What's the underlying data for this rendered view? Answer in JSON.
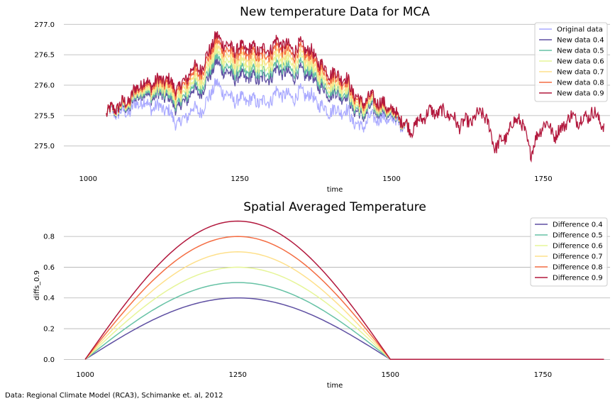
{
  "caption": "Data: Regional Climate Model (RCA3), Schimanke et. al, 2012",
  "chart_data": [
    {
      "type": "line",
      "title": "New temperature Data for MCA",
      "xlabel": "time",
      "ylabel": "",
      "xlim": [
        960,
        1860
      ],
      "ylim": [
        274.6,
        277.05
      ],
      "xticks": [
        1000,
        1250,
        1500,
        1750
      ],
      "yticks": [
        275.0,
        275.5,
        276.0,
        276.5,
        277.0
      ],
      "ytick_labels": [
        "275.0",
        "275.5",
        "276.0",
        "276.5",
        "277.0"
      ],
      "grid": "horizontal",
      "legend_position": "top-right",
      "mca_range": [
        1030,
        1530
      ],
      "baseline_x": [
        1030,
        1050,
        1070,
        1090,
        1110,
        1130,
        1150,
        1170,
        1190,
        1200,
        1210,
        1230,
        1250,
        1270,
        1290,
        1310,
        1330,
        1350,
        1370,
        1390,
        1410,
        1430,
        1450,
        1470,
        1490,
        1510,
        1530,
        1550,
        1570,
        1590,
        1610,
        1630,
        1650,
        1670,
        1690,
        1710,
        1730,
        1750,
        1770,
        1790,
        1810,
        1830,
        1850
      ],
      "baseline_y": [
        275.5,
        275.6,
        275.55,
        275.75,
        275.65,
        275.55,
        275.4,
        275.55,
        275.6,
        275.9,
        276.0,
        275.8,
        275.8,
        275.7,
        275.75,
        275.85,
        275.8,
        275.9,
        275.75,
        275.65,
        275.55,
        275.55,
        275.3,
        275.45,
        275.5,
        275.35,
        275.3,
        275.45,
        275.55,
        275.6,
        275.3,
        275.45,
        275.55,
        275.0,
        275.2,
        275.45,
        274.95,
        275.35,
        275.2,
        275.45,
        275.4,
        275.6,
        275.3
      ],
      "series": [
        {
          "name": "Original data",
          "color": "#aaaaff",
          "amplitude": 0.0
        },
        {
          "name": "New data 0.4",
          "color": "#5e4fa2",
          "amplitude": 0.4
        },
        {
          "name": "New data 0.5",
          "color": "#66c2a5",
          "amplitude": 0.5
        },
        {
          "name": "New data 0.6",
          "color": "#e6f598",
          "amplitude": 0.6
        },
        {
          "name": "New data 0.7",
          "color": "#fee08b",
          "amplitude": 0.7
        },
        {
          "name": "New data 0.8",
          "color": "#f46d43",
          "amplitude": 0.8
        },
        {
          "name": "New data 0.9",
          "color": "#b2183d",
          "amplitude": 0.9
        }
      ]
    },
    {
      "type": "line",
      "title": "Spatial Averaged Temperature",
      "xlabel": "time",
      "ylabel": "diffs_0.9",
      "xlim": [
        965,
        1860
      ],
      "ylim": [
        -0.04,
        0.93
      ],
      "xticks": [
        1000,
        1250,
        1500,
        1750
      ],
      "yticks": [
        0.0,
        0.2,
        0.4,
        0.6,
        0.8
      ],
      "ytick_labels": [
        "0.0",
        "0.2",
        "0.4",
        "0.6",
        "0.8"
      ],
      "grid": "horizontal",
      "legend_position": "top-right",
      "x_range": [
        1000,
        1850
      ],
      "bump_range": [
        1000,
        1500
      ],
      "series": [
        {
          "name": "Difference 0.4",
          "color": "#5e4fa2",
          "peak": 0.4
        },
        {
          "name": "Difference 0.5",
          "color": "#66c2a5",
          "peak": 0.5
        },
        {
          "name": "Difference 0.6",
          "color": "#e6f598",
          "peak": 0.6
        },
        {
          "name": "Difference 0.7",
          "color": "#fee08b",
          "peak": 0.7
        },
        {
          "name": "Difference 0.8",
          "color": "#f46d43",
          "peak": 0.8
        },
        {
          "name": "Difference 0.9",
          "color": "#b2183d",
          "peak": 0.9
        }
      ]
    }
  ]
}
